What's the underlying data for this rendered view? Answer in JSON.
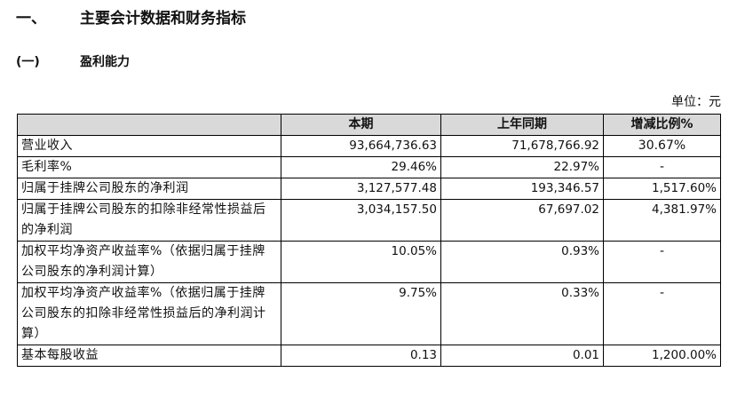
{
  "heading": {
    "number": "一、",
    "title": "主要会计数据和财务指标"
  },
  "subheading": {
    "number": "(一)",
    "title": "盈利能力"
  },
  "unit_label": "单位：元",
  "table": {
    "headers": [
      "",
      "本期",
      "上年同期",
      "增减比例%"
    ],
    "rows": [
      {
        "item": "营业收入",
        "current": "93,664,736.63",
        "prior": "71,678,766.92",
        "change": "30.67%"
      },
      {
        "item": "毛利率%",
        "current": "29.46%",
        "prior": "22.97%",
        "change": "-"
      },
      {
        "item": "归属于挂牌公司股东的净利润",
        "current": "3,127,577.48",
        "prior": "193,346.57",
        "change": "1,517.60%"
      },
      {
        "item": "归属于挂牌公司股东的扣除非经常性损益后的净利润",
        "current": "3,034,157.50",
        "prior": "67,697.02",
        "change": "4,381.97%"
      },
      {
        "item": "加权平均净资产收益率%（依据归属于挂牌公司股东的净利润计算）",
        "current": "10.05%",
        "prior": "0.93%",
        "change": "-"
      },
      {
        "item": "加权平均净资产收益率%（依据归属于挂牌公司股东的扣除非经常性损益后的净利润计算）",
        "current": "9.75%",
        "prior": "0.33%",
        "change": "-"
      },
      {
        "item": "基本每股收益",
        "current": "0.13",
        "prior": "0.01",
        "change": "1,200.00%"
      }
    ]
  }
}
